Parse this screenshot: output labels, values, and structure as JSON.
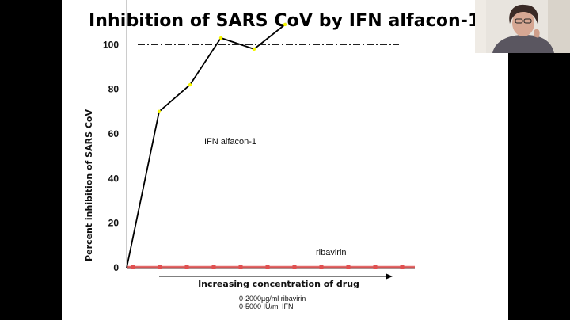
{
  "slide": {
    "title": "Inhibition of SARS CoV by IFN alfacon-1",
    "footnote_line1": "0-2000µg/ml ribavirin",
    "footnote_line2": "0-5000 IU/ml IFN"
  },
  "webcam": {
    "icon": "person-video-icon"
  },
  "colors": {
    "background": "#000000",
    "slide": "#ffffff",
    "ifn_line": "#000000",
    "ifn_marker": "#f5f500",
    "ribavirin": "#e05050",
    "reference_line": "#000000"
  },
  "chart_data": {
    "type": "line",
    "xlabel": "Increasing concentration of drug",
    "ylabel": "Percent inhibition of SARS CoV",
    "ylim": [
      0,
      120
    ],
    "yticks": [
      0,
      20,
      40,
      60,
      80,
      100
    ],
    "reference_line": {
      "y": 100,
      "style": "dash-dot"
    },
    "series": [
      {
        "name": "IFN alfacon-1",
        "values": [
          0,
          70,
          82,
          103,
          98,
          109
        ]
      },
      {
        "name": "ribavirin",
        "values": [
          0,
          0,
          0,
          0,
          0,
          0,
          0,
          0,
          0,
          0,
          0
        ]
      }
    ]
  }
}
